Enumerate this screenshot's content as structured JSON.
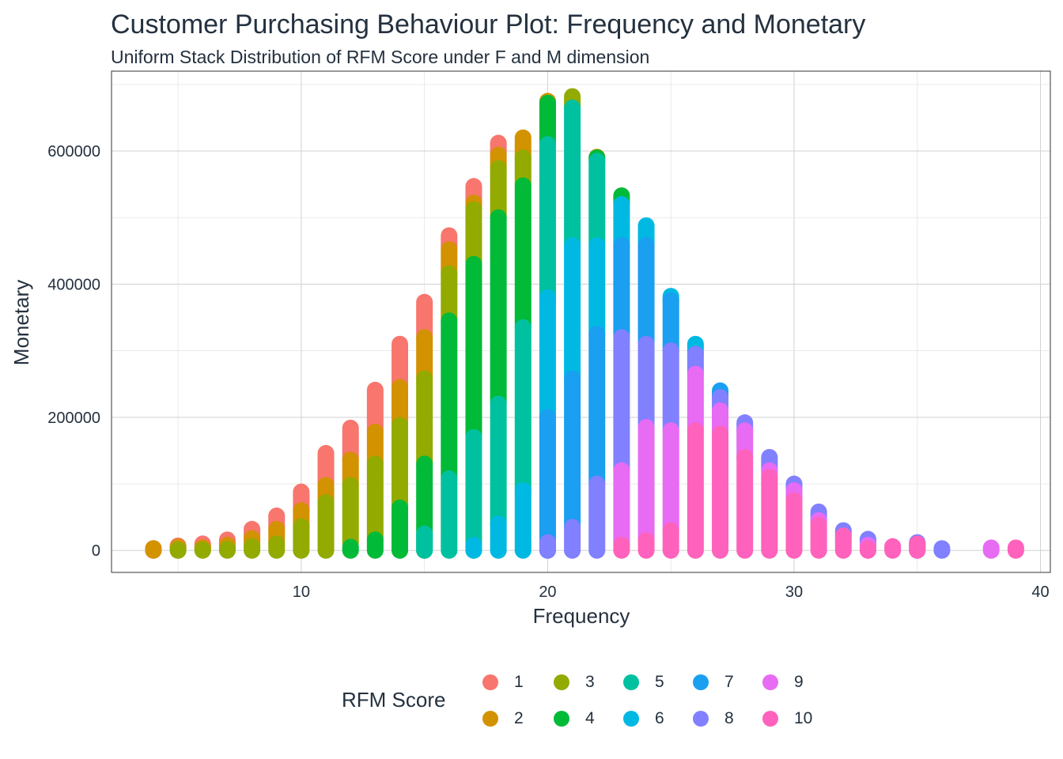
{
  "chart_data": {
    "type": "scatter",
    "title": "Customer Purchasing Behaviour Plot: Frequency and Monetary",
    "subtitle": "Uniform Stack Distribution of RFM Score under F and M dimension",
    "xlabel": "Frequency",
    "ylabel": "Monetary",
    "xlim": [
      2.3,
      40.4
    ],
    "ylim": [
      -33000,
      720000
    ],
    "xticks": [
      10,
      20,
      30,
      40
    ],
    "yticks": [
      0,
      200000,
      400000,
      600000
    ],
    "grid": true,
    "legend": {
      "title": "RFM Score",
      "placement": "bottom"
    },
    "series": [
      {
        "name": "1",
        "color": "#F8766D",
        "segments": [
          [
            4,
            0,
            3000
          ],
          [
            5,
            3000,
            7000
          ],
          [
            6,
            4000,
            10000
          ],
          [
            7,
            8000,
            16000
          ],
          [
            8,
            18000,
            32000
          ],
          [
            9,
            32000,
            52000
          ],
          [
            10,
            60000,
            88000
          ],
          [
            11,
            98000,
            146000
          ],
          [
            12,
            136000,
            184000
          ],
          [
            13,
            178000,
            241000
          ],
          [
            14,
            245000,
            310000
          ],
          [
            15,
            320000,
            373000
          ],
          [
            16,
            452000,
            473000
          ],
          [
            17,
            522000,
            547000
          ],
          [
            18,
            594000,
            612000
          ]
        ]
      },
      {
        "name": "2",
        "color": "#D39200",
        "segments": [
          [
            4,
            0,
            3000
          ],
          [
            5,
            0,
            5000
          ],
          [
            6,
            1000,
            4000
          ],
          [
            7,
            2000,
            8000
          ],
          [
            8,
            6000,
            18000
          ],
          [
            9,
            10000,
            32000
          ],
          [
            10,
            36000,
            60000
          ],
          [
            11,
            72000,
            98000
          ],
          [
            12,
            98000,
            136000
          ],
          [
            13,
            130000,
            178000
          ],
          [
            14,
            188000,
            245000
          ],
          [
            15,
            258000,
            320000
          ],
          [
            16,
            416000,
            452000
          ],
          [
            17,
            512000,
            522000
          ],
          [
            18,
            574000,
            594000
          ],
          [
            19,
            590000,
            620000
          ],
          [
            20,
            672000,
            675000
          ],
          [
            22,
            590000,
            591000
          ]
        ]
      },
      {
        "name": "3",
        "color": "#93AA00",
        "segments": [
          [
            5,
            0,
            1000
          ],
          [
            6,
            0,
            1000
          ],
          [
            7,
            0,
            2000
          ],
          [
            8,
            0,
            6000
          ],
          [
            9,
            0,
            10000
          ],
          [
            10,
            0,
            36000
          ],
          [
            11,
            0,
            72000
          ],
          [
            12,
            12000,
            98000
          ],
          [
            13,
            16000,
            130000
          ],
          [
            14,
            64000,
            188000
          ],
          [
            15,
            130000,
            258000
          ],
          [
            16,
            345000,
            416000
          ],
          [
            17,
            430000,
            512000
          ],
          [
            18,
            500000,
            574000
          ],
          [
            19,
            548000,
            590000
          ],
          [
            21,
            665000,
            682000
          ]
        ]
      },
      {
        "name": "4",
        "color": "#00BA38",
        "segments": [
          [
            12,
            0,
            5000
          ],
          [
            13,
            0,
            16000
          ],
          [
            14,
            0,
            64000
          ],
          [
            15,
            0,
            130000
          ],
          [
            16,
            108000,
            345000
          ],
          [
            17,
            170000,
            430000
          ],
          [
            18,
            220000,
            500000
          ],
          [
            19,
            335000,
            548000
          ],
          [
            20,
            610000,
            672000
          ],
          [
            22,
            585000,
            590000
          ],
          [
            23,
            520000,
            533000
          ]
        ]
      },
      {
        "name": "5",
        "color": "#00C19F",
        "segments": [
          [
            15,
            0,
            25000
          ],
          [
            16,
            0,
            108000
          ],
          [
            17,
            0,
            170000
          ],
          [
            18,
            40000,
            220000
          ],
          [
            19,
            90000,
            335000
          ],
          [
            20,
            380000,
            610000
          ],
          [
            21,
            458000,
            665000
          ],
          [
            22,
            458000,
            585000
          ]
        ]
      },
      {
        "name": "6",
        "color": "#00B9E3",
        "segments": [
          [
            17,
            0,
            8000
          ],
          [
            18,
            0,
            40000
          ],
          [
            19,
            0,
            90000
          ],
          [
            20,
            200000,
            380000
          ],
          [
            21,
            258000,
            458000
          ],
          [
            22,
            325000,
            458000
          ],
          [
            23,
            458000,
            520000
          ],
          [
            24,
            458000,
            488000
          ],
          [
            25,
            375000,
            382000
          ],
          [
            26,
            295000,
            310000
          ]
        ]
      },
      {
        "name": "7",
        "color": "#1A9FF1",
        "segments": [
          [
            20,
            0,
            200000
          ],
          [
            21,
            35000,
            258000
          ],
          [
            22,
            100000,
            325000
          ],
          [
            23,
            320000,
            458000
          ],
          [
            24,
            310000,
            458000
          ],
          [
            25,
            300000,
            375000
          ],
          [
            27,
            230000,
            240000
          ]
        ]
      },
      {
        "name": "8",
        "color": "#8180FF",
        "segments": [
          [
            20,
            0,
            12000
          ],
          [
            21,
            0,
            35000
          ],
          [
            22,
            0,
            100000
          ],
          [
            23,
            120000,
            320000
          ],
          [
            24,
            185000,
            310000
          ],
          [
            25,
            180000,
            300000
          ],
          [
            26,
            265000,
            295000
          ],
          [
            27,
            210000,
            230000
          ],
          [
            28,
            180000,
            192000
          ],
          [
            29,
            120000,
            140000
          ],
          [
            30,
            90000,
            100000
          ],
          [
            31,
            45000,
            58000
          ],
          [
            32,
            22000,
            30000
          ],
          [
            33,
            8000,
            17000
          ],
          [
            35,
            0,
            12000
          ],
          [
            36,
            0,
            3000
          ]
        ]
      },
      {
        "name": "9",
        "color": "#E76BF3",
        "segments": [
          [
            23,
            8000,
            120000
          ],
          [
            24,
            15000,
            185000
          ],
          [
            25,
            30000,
            180000
          ],
          [
            26,
            180000,
            265000
          ],
          [
            27,
            175000,
            210000
          ],
          [
            28,
            140000,
            180000
          ],
          [
            29,
            110000,
            120000
          ],
          [
            30,
            75000,
            90000
          ],
          [
            31,
            38000,
            45000
          ],
          [
            33,
            0,
            8000
          ],
          [
            38,
            0,
            4000
          ]
        ]
      },
      {
        "name": "10",
        "color": "#FF62BC",
        "segments": [
          [
            23,
            0,
            8000
          ],
          [
            24,
            0,
            15000
          ],
          [
            25,
            0,
            30000
          ],
          [
            26,
            0,
            180000
          ],
          [
            27,
            0,
            175000
          ],
          [
            28,
            0,
            140000
          ],
          [
            29,
            0,
            110000
          ],
          [
            30,
            0,
            75000
          ],
          [
            31,
            0,
            38000
          ],
          [
            32,
            0,
            22000
          ],
          [
            33,
            0,
            3000
          ],
          [
            34,
            0,
            6000
          ],
          [
            35,
            0,
            10000
          ],
          [
            39,
            0,
            4000
          ]
        ]
      }
    ]
  }
}
